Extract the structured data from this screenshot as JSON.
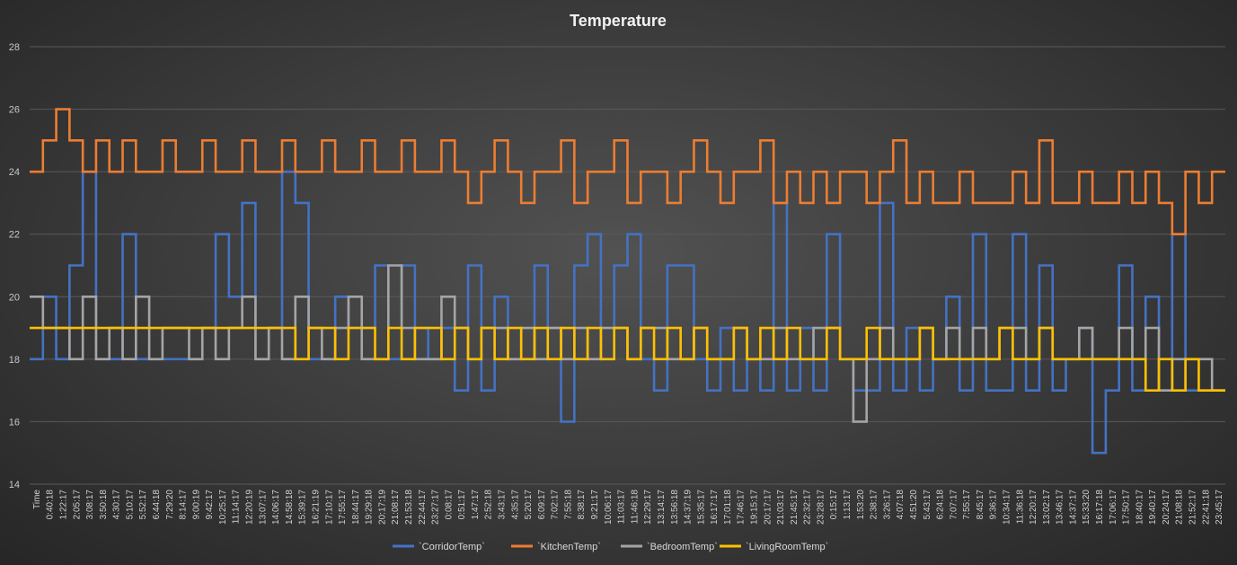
{
  "chart_data": {
    "type": "line",
    "title": "Temperature",
    "xlabel": "Time",
    "ylabel": "",
    "ylim": [
      14,
      28
    ],
    "yticks": [
      14,
      16,
      18,
      20,
      22,
      24,
      26,
      28
    ],
    "grid": true,
    "legend_position": "bottom",
    "categories": [
      "Time",
      "0:40:18",
      "1:22:17",
      "2:05:17",
      "3:08:17",
      "3:50:18",
      "4:30:17",
      "5:10:17",
      "5:52:17",
      "6:44:18",
      "7:29:20",
      "8:14:17",
      "9:00:19",
      "9:42:17",
      "10:25:17",
      "11:14:17",
      "12:20:19",
      "13:07:17",
      "14:06:17",
      "14:58:18",
      "15:39:17",
      "16:21:19",
      "17:10:17",
      "17:55:17",
      "18:44:17",
      "19:29:18",
      "20:17:19",
      "21:08:17",
      "21:53:18",
      "22:44:17",
      "23:27:17",
      "0:08:17",
      "0:51:17",
      "1:47:17",
      "2:52:18",
      "3:43:17",
      "4:35:17",
      "5:20:17",
      "6:09:17",
      "7:02:17",
      "7:55:18",
      "8:38:17",
      "9:21:17",
      "10:06:17",
      "11:03:17",
      "11:46:18",
      "12:29:17",
      "13:14:17",
      "13:56:18",
      "14:37:19",
      "15:35:17",
      "16:17:17",
      "17:01:18",
      "17:46:17",
      "19:15:17",
      "20:17:17",
      "21:03:17",
      "21:45:17",
      "22:32:17",
      "23:28:17",
      "0:15:17",
      "1:13:17",
      "1:53:20",
      "2:38:17",
      "3:26:17",
      "4:07:18",
      "4:51:20",
      "5:43:17",
      "6:24:18",
      "7:07:17",
      "7:55:17",
      "8:45:17",
      "9:36:17",
      "10:34:17",
      "11:36:18",
      "12:20:17",
      "13:02:17",
      "13:46:17",
      "14:37:17",
      "15:33:20",
      "16:17:18",
      "17:06:17",
      "17:50:17",
      "18:40:17",
      "19:40:17",
      "20:24:17",
      "21:08:18",
      "21:52:17",
      "22:41:18",
      "23:45:17"
    ],
    "series": [
      {
        "name": "`CorridorTemp`",
        "color": "#4472c4",
        "values": [
          18,
          20,
          18,
          21,
          24,
          18,
          18,
          22,
          18,
          18,
          18,
          18,
          18,
          19,
          22,
          20,
          23,
          18,
          19,
          24,
          23,
          18,
          18,
          20,
          19,
          19,
          21,
          18,
          21,
          19,
          18,
          19,
          17,
          21,
          17,
          20,
          18,
          18,
          21,
          19,
          16,
          21,
          22,
          18,
          21,
          22,
          18,
          17,
          21,
          21,
          18,
          17,
          19,
          17,
          18,
          17,
          23,
          17,
          19,
          17,
          22,
          18,
          17,
          17,
          23,
          17,
          19,
          17,
          18,
          20,
          17,
          22,
          17,
          17,
          22,
          17,
          21,
          17,
          18,
          19,
          15,
          17,
          21,
          17,
          20,
          17,
          22,
          17,
          17,
          17
        ]
      },
      {
        "name": "`KitchenTemp`",
        "color": "#ed7d31",
        "values": [
          24,
          25,
          26,
          25,
          24,
          25,
          24,
          25,
          24,
          24,
          25,
          24,
          24,
          25,
          24,
          24,
          25,
          24,
          24,
          25,
          24,
          24,
          25,
          24,
          24,
          25,
          24,
          24,
          25,
          24,
          24,
          25,
          24,
          23,
          24,
          25,
          24,
          23,
          24,
          24,
          25,
          23,
          24,
          24,
          25,
          23,
          24,
          24,
          23,
          24,
          25,
          24,
          23,
          24,
          24,
          25,
          23,
          24,
          23,
          24,
          23,
          24,
          24,
          23,
          24,
          25,
          23,
          24,
          23,
          23,
          24,
          23,
          23,
          23,
          24,
          23,
          25,
          23,
          23,
          24,
          23,
          23,
          24,
          23,
          24,
          23,
          22,
          24,
          23,
          24
        ]
      },
      {
        "name": "`BedroomTemp`",
        "color": "#a5a5a5",
        "values": [
          20,
          19,
          19,
          18,
          20,
          18,
          19,
          18,
          20,
          18,
          19,
          19,
          18,
          19,
          18,
          19,
          20,
          18,
          19,
          18,
          20,
          19,
          18,
          19,
          20,
          18,
          18,
          21,
          19,
          18,
          18,
          20,
          19,
          18,
          19,
          19,
          18,
          19,
          18,
          19,
          18,
          19,
          18,
          19,
          19,
          18,
          19,
          19,
          18,
          18,
          19,
          18,
          18,
          19,
          18,
          18,
          19,
          18,
          18,
          19,
          19,
          18,
          16,
          18,
          19,
          18,
          18,
          19,
          18,
          19,
          18,
          19,
          18,
          19,
          19,
          18,
          19,
          18,
          18,
          19,
          18,
          18,
          19,
          18,
          19,
          17,
          18,
          18,
          18,
          17
        ]
      },
      {
        "name": "`LivingRoomTemp`",
        "color": "#ffc000",
        "values": [
          19,
          19,
          19,
          19,
          19,
          19,
          19,
          19,
          19,
          19,
          19,
          19,
          19,
          19,
          19,
          19,
          19,
          19,
          19,
          19,
          18,
          19,
          19,
          18,
          19,
          19,
          18,
          19,
          18,
          19,
          19,
          18,
          19,
          18,
          19,
          18,
          19,
          18,
          19,
          18,
          19,
          18,
          19,
          18,
          19,
          18,
          19,
          18,
          19,
          18,
          19,
          18,
          18,
          19,
          18,
          19,
          18,
          19,
          18,
          18,
          19,
          18,
          18,
          19,
          18,
          18,
          18,
          19,
          18,
          18,
          18,
          18,
          18,
          19,
          18,
          18,
          19,
          18,
          18,
          18,
          18,
          18,
          18,
          18,
          17,
          18,
          17,
          18,
          17,
          17
        ]
      }
    ]
  }
}
